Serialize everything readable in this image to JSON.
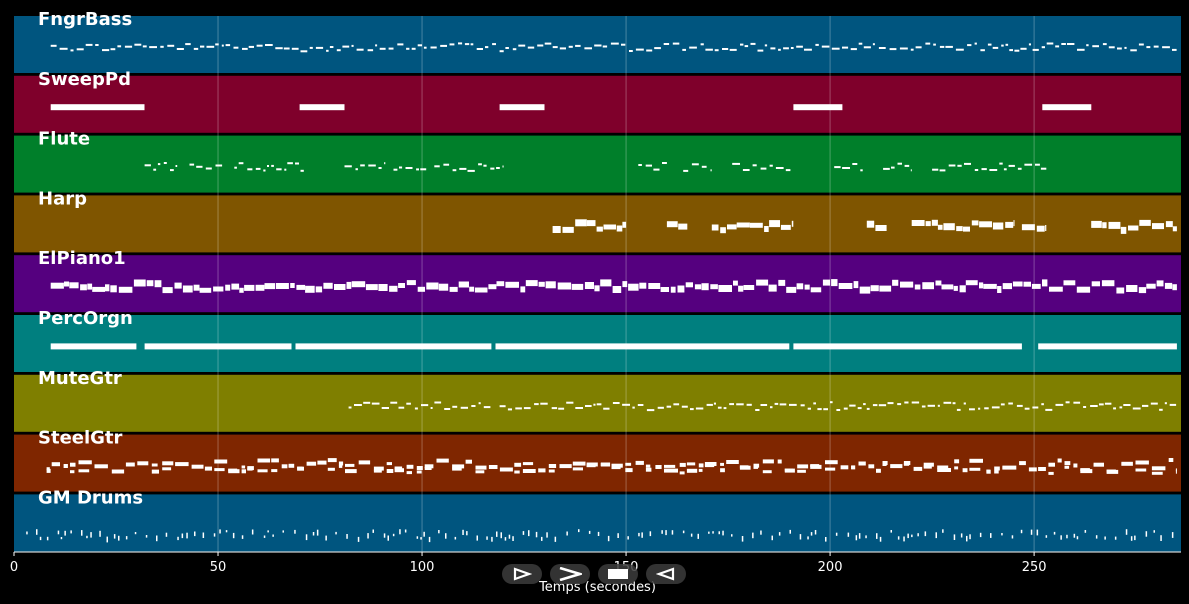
{
  "chart_data": {
    "type": "piano-roll",
    "xlabel": "Temps (secondes)",
    "xlim": [
      0,
      286
    ],
    "xticks": [
      0,
      50,
      100,
      150,
      200,
      250
    ],
    "grid": true,
    "tracks": [
      {
        "name": "FngrBass",
        "color": "#00557f",
        "notes": [
          [
            9,
            285
          ]
        ],
        "style": "fine"
      },
      {
        "name": "SweepPd",
        "color": "#7f002b",
        "notes": [
          [
            9,
            32
          ],
          [
            70,
            81
          ],
          [
            119,
            130
          ],
          [
            191,
            203
          ],
          [
            252,
            264
          ]
        ],
        "style": "block"
      },
      {
        "name": "Flute",
        "color": "#007f2a",
        "notes": [
          [
            32,
            40
          ],
          [
            43,
            51
          ],
          [
            54,
            71
          ],
          [
            81,
            91
          ],
          [
            93,
            101
          ],
          [
            103,
            120
          ],
          [
            153,
            160
          ],
          [
            164,
            171
          ],
          [
            176,
            191
          ],
          [
            201,
            208
          ],
          [
            213,
            220
          ],
          [
            225,
            253
          ]
        ],
        "style": "fine"
      },
      {
        "name": "Harp",
        "color": "#7f5500",
        "notes": [
          [
            132,
            150
          ],
          [
            160,
            165
          ],
          [
            171,
            191
          ],
          [
            209,
            214
          ],
          [
            220,
            245
          ],
          [
            247,
            253
          ],
          [
            264,
            285
          ]
        ],
        "style": "thick"
      },
      {
        "name": "ElPiano1",
        "color": "#55007f",
        "notes": [
          [
            9,
            285
          ]
        ],
        "style": "thick"
      },
      {
        "name": "PercOrgn",
        "color": "#007f7f",
        "notes": [
          [
            9,
            30
          ],
          [
            32,
            68
          ],
          [
            69,
            117
          ],
          [
            118,
            190
          ],
          [
            191,
            247
          ],
          [
            251,
            285
          ]
        ],
        "style": "block"
      },
      {
        "name": "MuteGtr",
        "color": "#7f7f00",
        "notes": [
          [
            82,
            117
          ],
          [
            119,
            285
          ]
        ],
        "style": "fine"
      },
      {
        "name": "SteelGtr",
        "color": "#7f2600",
        "notes": [
          [
            8,
            285
          ]
        ],
        "style": "dense"
      },
      {
        "name": "GM Drums",
        "color": "#00557f",
        "notes": [
          [
            3,
            285
          ]
        ],
        "style": "drums"
      }
    ]
  },
  "controls": [
    {
      "name": "play",
      "icon": "play-icon"
    },
    {
      "name": "next",
      "icon": "chevron-right-icon"
    },
    {
      "name": "stop",
      "icon": "stop-icon"
    },
    {
      "name": "back",
      "icon": "back-icon"
    }
  ]
}
